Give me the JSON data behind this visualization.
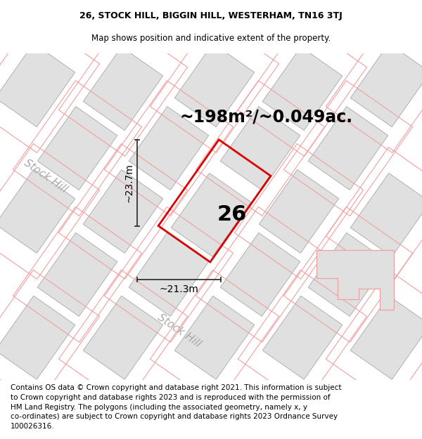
{
  "title_line1": "26, STOCK HILL, BIGGIN HILL, WESTERHAM, TN16 3TJ",
  "title_line2": "Map shows position and indicative extent of the property.",
  "area_text": "~198m²/~0.049ac.",
  "number_label": "26",
  "dim_vertical": "~23.7m",
  "dim_horizontal": "~21.3m",
  "road_label_left": "Stock Hill",
  "road_label_bottom": "Stock Hill",
  "white": "#ffffff",
  "map_bg": "#f7f7f7",
  "building_fill": "#e0e0e0",
  "building_edge": "#b0b0b0",
  "red_outline": "#dd0000",
  "pink_outline": "#f0a0a0",
  "dim_color": "#333333",
  "road_color": "#aaaaaa",
  "footer_fontsize": 7.5,
  "title_fontsize": 9,
  "area_fontsize": 17,
  "label_fontsize": 22,
  "dim_fontsize": 10,
  "road_fontsize": 11,
  "footer_text_line1": "Contains OS data © Crown copyright and database right 2021. This information is subject",
  "footer_text_line2": "to Crown copyright and database rights 2023 and is reproduced with the permission of",
  "footer_text_line3": "HM Land Registry. The polygons (including the associated geometry, namely x, y",
  "footer_text_line4": "co-ordinates) are subject to Crown copyright and database rights 2023 Ordnance Survey",
  "footer_text_line5": "100026316."
}
